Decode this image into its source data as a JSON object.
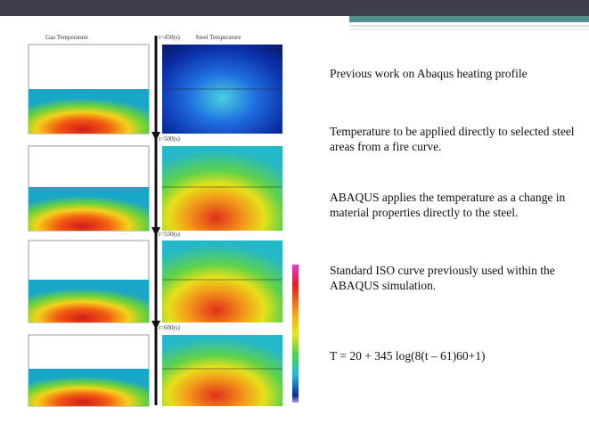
{
  "figure": {
    "left_title": "Gas Temperature",
    "right_title": "Steel Temperature",
    "time_labels": [
      "t=450(s)",
      "t=500(s)",
      "t=550(s)",
      "t=600(s)"
    ]
  },
  "paragraphs": [
    "Previous work on Abaqus heating profile",
    "Temperature to be applied directly to selected steel areas from a fire curve.",
    "ABAQUS applies the temperature as a change in material properties directly to the steel.",
    "Standard ISO curve previously used within the ABAQUS simulation.",
    "T = 20 + 345 log(8(t – 61)60+1)"
  ]
}
